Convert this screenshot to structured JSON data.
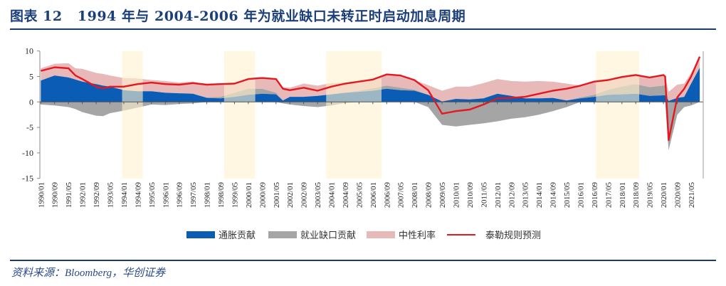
{
  "title": "图表 12   1994 年与 2004-2006 年为就业缺口未转正时启动加息周期",
  "source": "资料来源：Bloomberg，华创证券",
  "colors": {
    "inflation": "#0b5cb5",
    "gap": "#a5a5a5",
    "neutral": "#e8b9b9",
    "taylor": "#e5171f",
    "shade": "#fff1cf",
    "title": "#1b3f7a"
  },
  "chart_data": {
    "type": "area",
    "title": "",
    "xlabel": "",
    "ylabel": "",
    "ylim": [
      -15,
      10
    ],
    "y_ticks": [
      "10",
      "5",
      "0",
      "-5",
      "-10",
      "-15"
    ],
    "grid": false,
    "legend": "bottom",
    "legend_items": [
      "通胀贡献",
      "就业缺口贡献",
      "中性利率",
      "泰勒规则预测"
    ],
    "x_ticks": [
      "1990/01",
      "1990/09",
      "1991/05",
      "1992/01",
      "1992/09",
      "1993/05",
      "1994/01",
      "1994/09",
      "1995/05",
      "1996/01",
      "1996/09",
      "1997/05",
      "1998/01",
      "1998/09",
      "1999/05",
      "2000/01",
      "2000/09",
      "2001/05",
      "2002/01",
      "2002/09",
      "2003/05",
      "2004/01",
      "2004/09",
      "2005/05",
      "2006/01",
      "2006/09",
      "2007/05",
      "2008/01",
      "2008/09",
      "2009/05",
      "2010/01",
      "2010/09",
      "2011/05",
      "2012/01",
      "2012/09",
      "2013/05",
      "2014/01",
      "2014/09",
      "2015/05",
      "2016/01",
      "2016/09",
      "2017/05",
      "2018/01",
      "2018/09",
      "2019/05",
      "2020/01",
      "2020/09",
      "2021/05"
    ],
    "shaded_periods": [
      [
        "1993/12",
        "1994/12"
      ],
      [
        "1998/11",
        "2000/05"
      ],
      [
        "2003/10",
        "2006/06"
      ],
      [
        "2016/10",
        "2018/11"
      ]
    ],
    "dates": [
      "1990/01",
      "1990/09",
      "1991/05",
      "1991/09",
      "1992/01",
      "1992/09",
      "1993/01",
      "1993/05",
      "1994/01",
      "1994/09",
      "1995/05",
      "1996/01",
      "1996/09",
      "1997/05",
      "1998/01",
      "1998/09",
      "1999/05",
      "2000/01",
      "2000/09",
      "2001/05",
      "2001/09",
      "2002/01",
      "2002/09",
      "2003/05",
      "2004/01",
      "2004/09",
      "2005/05",
      "2006/01",
      "2006/09",
      "2007/05",
      "2008/01",
      "2008/09",
      "2009/05",
      "2010/01",
      "2010/09",
      "2011/05",
      "2012/01",
      "2012/09",
      "2013/05",
      "2014/01",
      "2014/09",
      "2015/05",
      "2016/01",
      "2016/09",
      "2017/05",
      "2018/01",
      "2018/09",
      "2019/05",
      "2020/01",
      "2020/02",
      "2020/04",
      "2020/09",
      "2021/01",
      "2021/05",
      "2021/10"
    ],
    "series": [
      {
        "name": "通胀贡献",
        "values": [
          4.2,
          5.2,
          4.8,
          4.4,
          4.0,
          3.5,
          3.2,
          3.0,
          2.3,
          2.1,
          2.1,
          1.8,
          1.7,
          1.6,
          0.8,
          0.7,
          1.0,
          1.4,
          1.6,
          1.5,
          0.3,
          1.0,
          1.0,
          1.2,
          1.5,
          1.8,
          2.0,
          2.2,
          2.6,
          2.3,
          2.2,
          1.4,
          0.1,
          0.6,
          0.5,
          0.7,
          1.6,
          1.2,
          0.7,
          0.7,
          0.8,
          0.3,
          0.7,
          1.0,
          1.4,
          1.5,
          1.6,
          1.2,
          1.3,
          1.3,
          0.2,
          0.8,
          1.0,
          3.6,
          6.7
        ]
      },
      {
        "name": "就业缺口贡献",
        "values": [
          -0.5,
          -0.7,
          -1.0,
          -1.4,
          -2.0,
          -2.7,
          -2.8,
          -2.2,
          -1.7,
          -1.1,
          -0.5,
          -0.6,
          -0.4,
          -0.3,
          0.1,
          0.3,
          0.8,
          1.2,
          1.0,
          0.3,
          -0.3,
          -0.5,
          -0.8,
          -1.0,
          -0.7,
          -0.2,
          0.2,
          0.5,
          0.6,
          0.5,
          0.2,
          -1.0,
          -4.5,
          -4.8,
          -4.5,
          -4.2,
          -3.8,
          -3.3,
          -3.0,
          -2.5,
          -1.8,
          -1.0,
          0.2,
          0.4,
          1.0,
          1.5,
          1.9,
          1.7,
          1.9,
          2.0,
          -9.5,
          -2.5,
          -1.0,
          -0.7,
          0.0
        ]
      },
      {
        "name": "中性利率",
        "values": [
          2.4,
          2.3,
          2.8,
          2.2,
          2.5,
          2.2,
          2.3,
          2.2,
          2.4,
          2.5,
          2.2,
          2.3,
          2.1,
          2.4,
          2.5,
          2.5,
          1.8,
          1.9,
          2.1,
          2.7,
          2.6,
          1.8,
          2.6,
          2.0,
          2.2,
          2.0,
          1.8,
          1.7,
          2.2,
          2.4,
          1.9,
          1.9,
          2.1,
          2.4,
          2.5,
          3.0,
          2.9,
          2.9,
          3.3,
          3.4,
          3.2,
          3.3,
          2.3,
          2.6,
          1.9,
          1.9,
          1.8,
          1.9,
          2.1,
          1.7,
          1.8,
          2.6,
          2.6,
          2.1,
          2.2
        ]
      },
      {
        "name": "泰勒规则预测",
        "values": [
          6.1,
          6.8,
          6.6,
          5.2,
          4.5,
          3.0,
          2.7,
          3.0,
          3.0,
          3.5,
          3.8,
          3.5,
          3.4,
          3.7,
          3.4,
          3.5,
          3.6,
          4.5,
          4.7,
          4.5,
          2.6,
          2.3,
          2.8,
          2.2,
          3.0,
          3.6,
          4.0,
          4.4,
          5.4,
          5.2,
          4.3,
          2.3,
          -2.3,
          -1.8,
          -1.5,
          -0.5,
          0.7,
          0.8,
          1.0,
          1.6,
          2.2,
          2.6,
          3.2,
          4.0,
          4.3,
          4.9,
          5.3,
          4.8,
          5.3,
          5.0,
          -7.5,
          0.9,
          2.6,
          5.0,
          8.9
        ]
      }
    ]
  }
}
